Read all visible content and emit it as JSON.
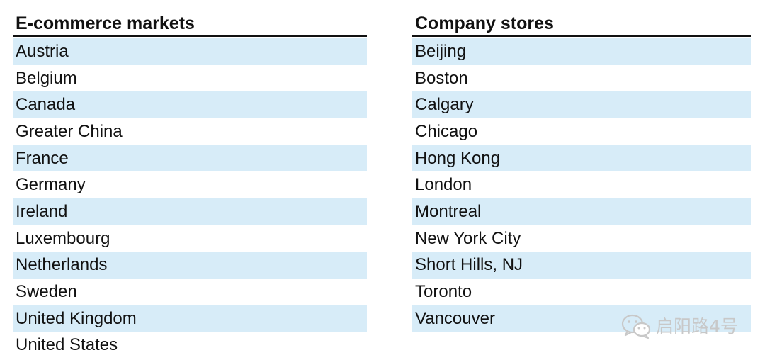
{
  "left_table": {
    "title": "E-commerce markets",
    "items": [
      "Austria",
      "Belgium",
      "Canada",
      "Greater China",
      "France",
      "Germany",
      "Ireland",
      "Luxembourg",
      "Netherlands",
      "Sweden",
      "United Kingdom",
      "United States"
    ]
  },
  "right_table": {
    "title": "Company stores",
    "items": [
      "Beijing",
      "Boston",
      "Calgary",
      "Chicago",
      "Hong Kong",
      "London",
      "Montreal",
      "New York City",
      "Short Hills, NJ",
      "Toronto",
      "Vancouver"
    ]
  },
  "watermark": {
    "icon": "wechat-icon",
    "text": "启阳路4号"
  },
  "colors": {
    "row_shade": "#d7ecf8",
    "rule": "#111111",
    "watermark": "#c8c8c8"
  }
}
